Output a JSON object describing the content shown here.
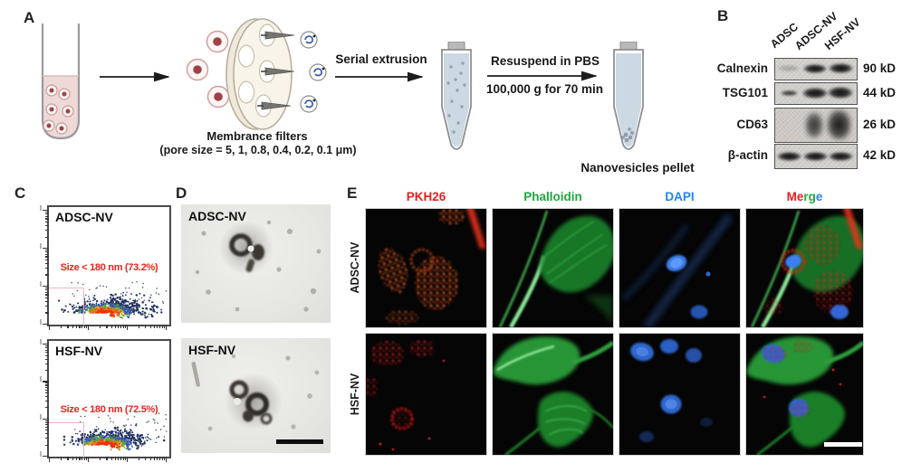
{
  "figure": {
    "panel_a": {
      "label": "A",
      "membrane_filters_line1": "Membrance filters",
      "membrane_filters_line2": "(pore size = 5, 1, 0.8, 0.4, 0.2, 0.1 μm)",
      "serial_extrusion_label": "Serial extrusion",
      "resuspend_label": "Resuspend in PBS",
      "centrifugation_label": "100,000 g for 70 min",
      "pellet_label": "Nanovesicles pellet"
    },
    "panel_b": {
      "label": "B",
      "lane_labels": [
        "ADSC",
        "ADSC-NV",
        "HSF-NV"
      ],
      "blot_rows": [
        {
          "protein": "Calnexin",
          "molecular_weight": "90 kD"
        },
        {
          "protein": "TSG101",
          "molecular_weight": "44 kD"
        },
        {
          "protein": "CD63",
          "molecular_weight": "26 kD"
        },
        {
          "protein": "β-actin",
          "molecular_weight": "42 kD"
        }
      ]
    },
    "panel_c": {
      "label": "C",
      "annotation_color": "#e8251c",
      "plots": [
        {
          "title": "ADSC-NV",
          "gate_annotation": "Size < 180 nm (73.2%)"
        },
        {
          "title": "HSF-NV",
          "gate_annotation": "Size < 180 nm (72.5%)"
        }
      ]
    },
    "panel_d": {
      "label": "D",
      "images": [
        {
          "title": "ADSC-NV"
        },
        {
          "title": "HSF-NV"
        }
      ]
    },
    "panel_e": {
      "label": "E",
      "column_headers": [
        {
          "text": "PKH26",
          "color": "#e51f1f"
        },
        {
          "text": "Phalloidin",
          "color": "#1ea83c"
        },
        {
          "text": "DAPI",
          "color": "#2384f0"
        }
      ],
      "merge_header_segments": [
        {
          "text": "Me",
          "color": "#e51f1f"
        },
        {
          "text": "rg",
          "color": "#1ea83c"
        },
        {
          "text": "e",
          "color": "#2384f0"
        }
      ],
      "row_labels": [
        "ADSC-NV",
        "HSF-NV"
      ]
    }
  },
  "chart_data": [
    {
      "type": "scatter",
      "title": "ADSC-NV",
      "annotation": "Size < 180 nm (73.2%)",
      "gated_fraction_percent": 73.2,
      "gate": "rectangular gate in lower-left corner",
      "axes": {
        "x": "unlabeled log-scale axis",
        "y": "unlabeled log-scale axis"
      },
      "description": "Dense density-colored event cloud along the bottom axis; red/orange core left of center, blue/navy periphery spreading right."
    },
    {
      "type": "scatter",
      "title": "HSF-NV",
      "annotation": "Size < 180 nm (72.5%)",
      "gated_fraction_percent": 72.5,
      "gate": "rectangular gate in lower-left corner",
      "axes": {
        "x": "unlabeled log-scale axis",
        "y": "unlabeled log-scale axis"
      },
      "description": "Dense density-colored event cloud along the bottom axis; red/orange core left of center, blue/navy periphery spreading right."
    }
  ]
}
